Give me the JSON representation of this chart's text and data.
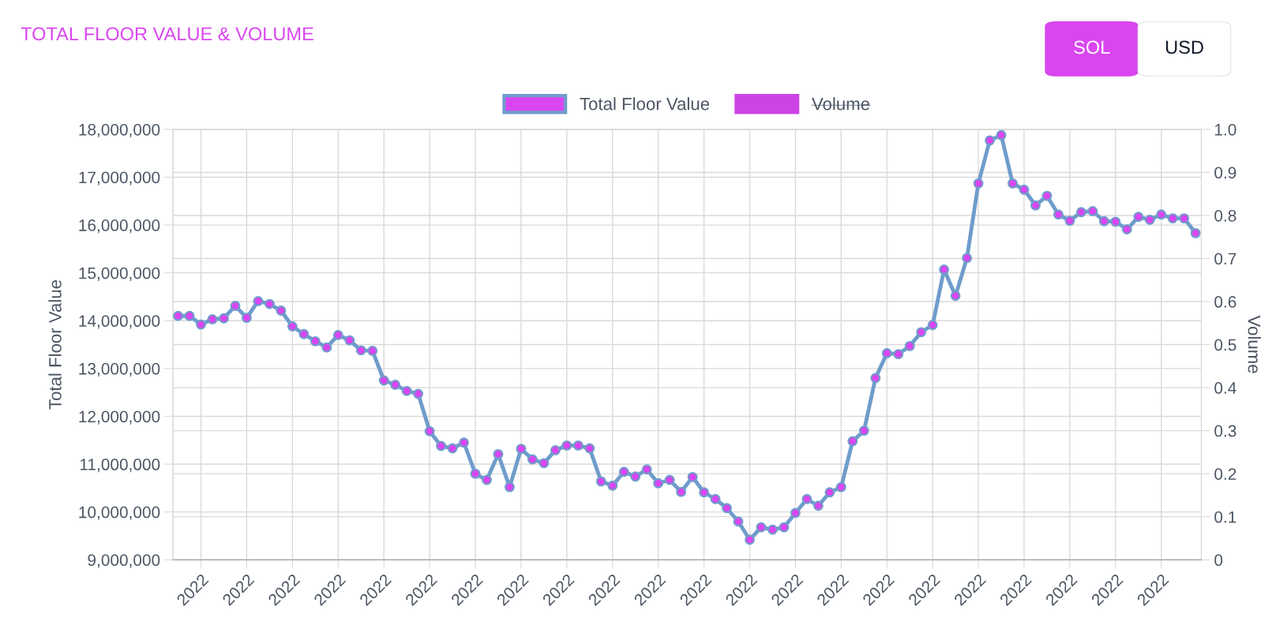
{
  "chart_data": {
    "type": "line",
    "title": "TOTAL FLOOR VALUE & VOLUME",
    "ylabel": "Total Floor Value",
    "y2label": "Volume",
    "categories": [
      null,
      null,
      "2022",
      null,
      null,
      null,
      "2022",
      null,
      null,
      null,
      "2022",
      null,
      null,
      null,
      "2022",
      null,
      null,
      null,
      "2022",
      null,
      null,
      null,
      "2022",
      null,
      null,
      null,
      "2022",
      null,
      null,
      null,
      "2022",
      null,
      null,
      null,
      "2022",
      null,
      null,
      null,
      "2022",
      null,
      null,
      null,
      "2022",
      null,
      null,
      null,
      "2022",
      null,
      null,
      null,
      "2022",
      null,
      null,
      null,
      "2022",
      null,
      null,
      null,
      "2022",
      null,
      null,
      null,
      "2022",
      null,
      null,
      null,
      "2022",
      null,
      null,
      null,
      "2022",
      null,
      null,
      null,
      "2022",
      null,
      null,
      null,
      "2022",
      null,
      null,
      null,
      "2022",
      null,
      null,
      null,
      "2022",
      null,
      null,
      null
    ],
    "series": [
      {
        "name": "Total Floor Value",
        "color": "#6f9ccb",
        "colors": [
          "#d946ef",
          "#d946ef",
          "#d946ef",
          "#d946ef",
          "#d946ef",
          "#d946ef",
          "#d946ef",
          "#d946ef",
          "#d946ef",
          "#d946ef",
          "#d946ef",
          "#d946ef",
          "#d946ef",
          "#d946ef",
          "#d946ef",
          "#d946ef",
          "#d946ef",
          "#d946ef",
          "#d946ef",
          "#d946ef",
          "#d946ef",
          "#d946ef",
          "#d946ef",
          "#d946ef",
          "#d946ef",
          "#d946ef",
          "#d946ef",
          "#d946ef",
          "#d946ef",
          "#d946ef",
          "#d946ef",
          "#d946ef",
          "#d946ef",
          "#d946ef",
          "#d946ef",
          "#d946ef",
          "#d946ef",
          "#d946ef",
          "#d946ef",
          "#d946ef",
          "#d946ef",
          "#d946ef",
          "#d946ef",
          "#d946ef",
          "#d946ef",
          "#d946ef",
          "#d946ef",
          "#d946ef",
          "#d946ef",
          "#d946ef",
          "#d946ef",
          "#d946ef",
          "#d946ef",
          "#d946ef",
          "#d946ef",
          "#d946ef",
          "#d946ef",
          "#d946ef",
          "#d946ef",
          "#d946ef",
          "#d946ef",
          "#d946ef",
          "#d946ef",
          "#d946ef",
          "#d946ef",
          "#d946ef",
          "#d946ef",
          "#d946ef",
          "#d946ef",
          "#d946ef",
          "#d946ef",
          "#d946ef",
          "#d946ef",
          "#d946ef",
          "#d946ef",
          "#d946ef",
          "#d946ef",
          "#d946ef",
          "#d946ef",
          "#d946ef",
          "#d946ef",
          "#d946ef",
          "#d946ef",
          "#d946ef",
          "#d946ef",
          "#d946ef",
          "#d946ef",
          "#d946ef",
          "#d946ef",
          "#d946ef"
        ],
        "values": [
          14100000,
          14100000,
          13920000,
          14030000,
          14050000,
          14310000,
          14060000,
          14410000,
          14350000,
          14210000,
          13880000,
          13720000,
          13570000,
          13440000,
          13700000,
          13590000,
          13380000,
          13370000,
          12750000,
          12660000,
          12530000,
          12470000,
          11690000,
          11380000,
          11330000,
          11450000,
          10800000,
          10670000,
          11210000,
          10520000,
          11320000,
          11100000,
          11020000,
          11290000,
          11390000,
          11390000,
          11330000,
          10640000,
          10550000,
          10840000,
          10740000,
          10890000,
          10600000,
          10670000,
          10420000,
          10730000,
          10410000,
          10270000,
          10080000,
          9800000,
          9420000,
          9680000,
          9630000,
          9680000,
          9980000,
          10270000,
          10130000,
          10410000,
          10520000,
          11480000,
          11700000,
          12800000,
          13320000,
          13300000,
          13470000,
          13760000,
          13910000,
          15070000,
          14520000,
          15310000,
          16870000,
          17770000,
          17880000,
          16870000,
          16740000,
          16410000,
          16610000,
          16220000,
          16090000,
          16270000,
          16290000,
          16080000,
          16070000,
          15910000,
          16170000,
          16110000,
          16220000,
          16140000,
          16140000,
          15830000
        ]
      },
      {
        "name": "Volume",
        "color": "#cc44e6",
        "values": [
          null,
          null,
          null,
          null,
          null,
          null,
          null,
          null,
          null,
          null,
          null,
          null,
          null,
          null,
          null,
          null,
          null,
          null,
          null,
          null,
          null,
          null,
          null,
          null,
          null,
          null,
          null,
          null,
          null,
          null,
          null,
          null,
          null,
          null,
          null,
          null,
          null,
          null,
          null,
          null,
          null,
          null,
          null,
          null,
          null,
          null,
          null,
          null,
          null,
          null,
          null,
          null,
          null,
          null,
          null,
          null,
          null,
          null,
          null,
          null,
          null,
          null,
          null,
          null,
          null,
          null,
          null,
          null,
          null,
          null,
          null,
          null,
          null,
          null,
          null,
          null,
          null,
          null,
          null,
          null,
          null,
          null,
          null,
          null,
          null,
          null,
          null,
          null,
          null,
          null
        ]
      }
    ],
    "ylim": [
      9000000,
      18000000
    ],
    "yticks": [
      {
        "value": 9000000,
        "label": "9,000,000"
      },
      {
        "value": 10000000,
        "label": "10,000,000"
      },
      {
        "value": 11000000,
        "label": "11,000,000"
      },
      {
        "value": 12000000,
        "label": "12,000,000"
      },
      {
        "value": 13000000,
        "label": "13,000,000"
      },
      {
        "value": 14000000,
        "label": "14,000,000"
      },
      {
        "value": 15000000,
        "label": "15,000,000"
      },
      {
        "value": 16000000,
        "label": "16,000,000"
      },
      {
        "value": 17000000,
        "label": "17,000,000"
      },
      {
        "value": 18000000,
        "label": "18,000,000"
      }
    ],
    "y2lim": [
      0,
      1.0
    ],
    "y2ticks": [
      0,
      0.1,
      0.2,
      0.3,
      0.4,
      0.5,
      0.6,
      0.7,
      0.8,
      0.9,
      {
        "value": 1.0,
        "label": "1.0"
      }
    ],
    "annotations": [
      "SOL",
      "USD"
    ],
    "grid": true,
    "legend": "top",
    "marker": "circle",
    "line_style": "solid"
  }
}
